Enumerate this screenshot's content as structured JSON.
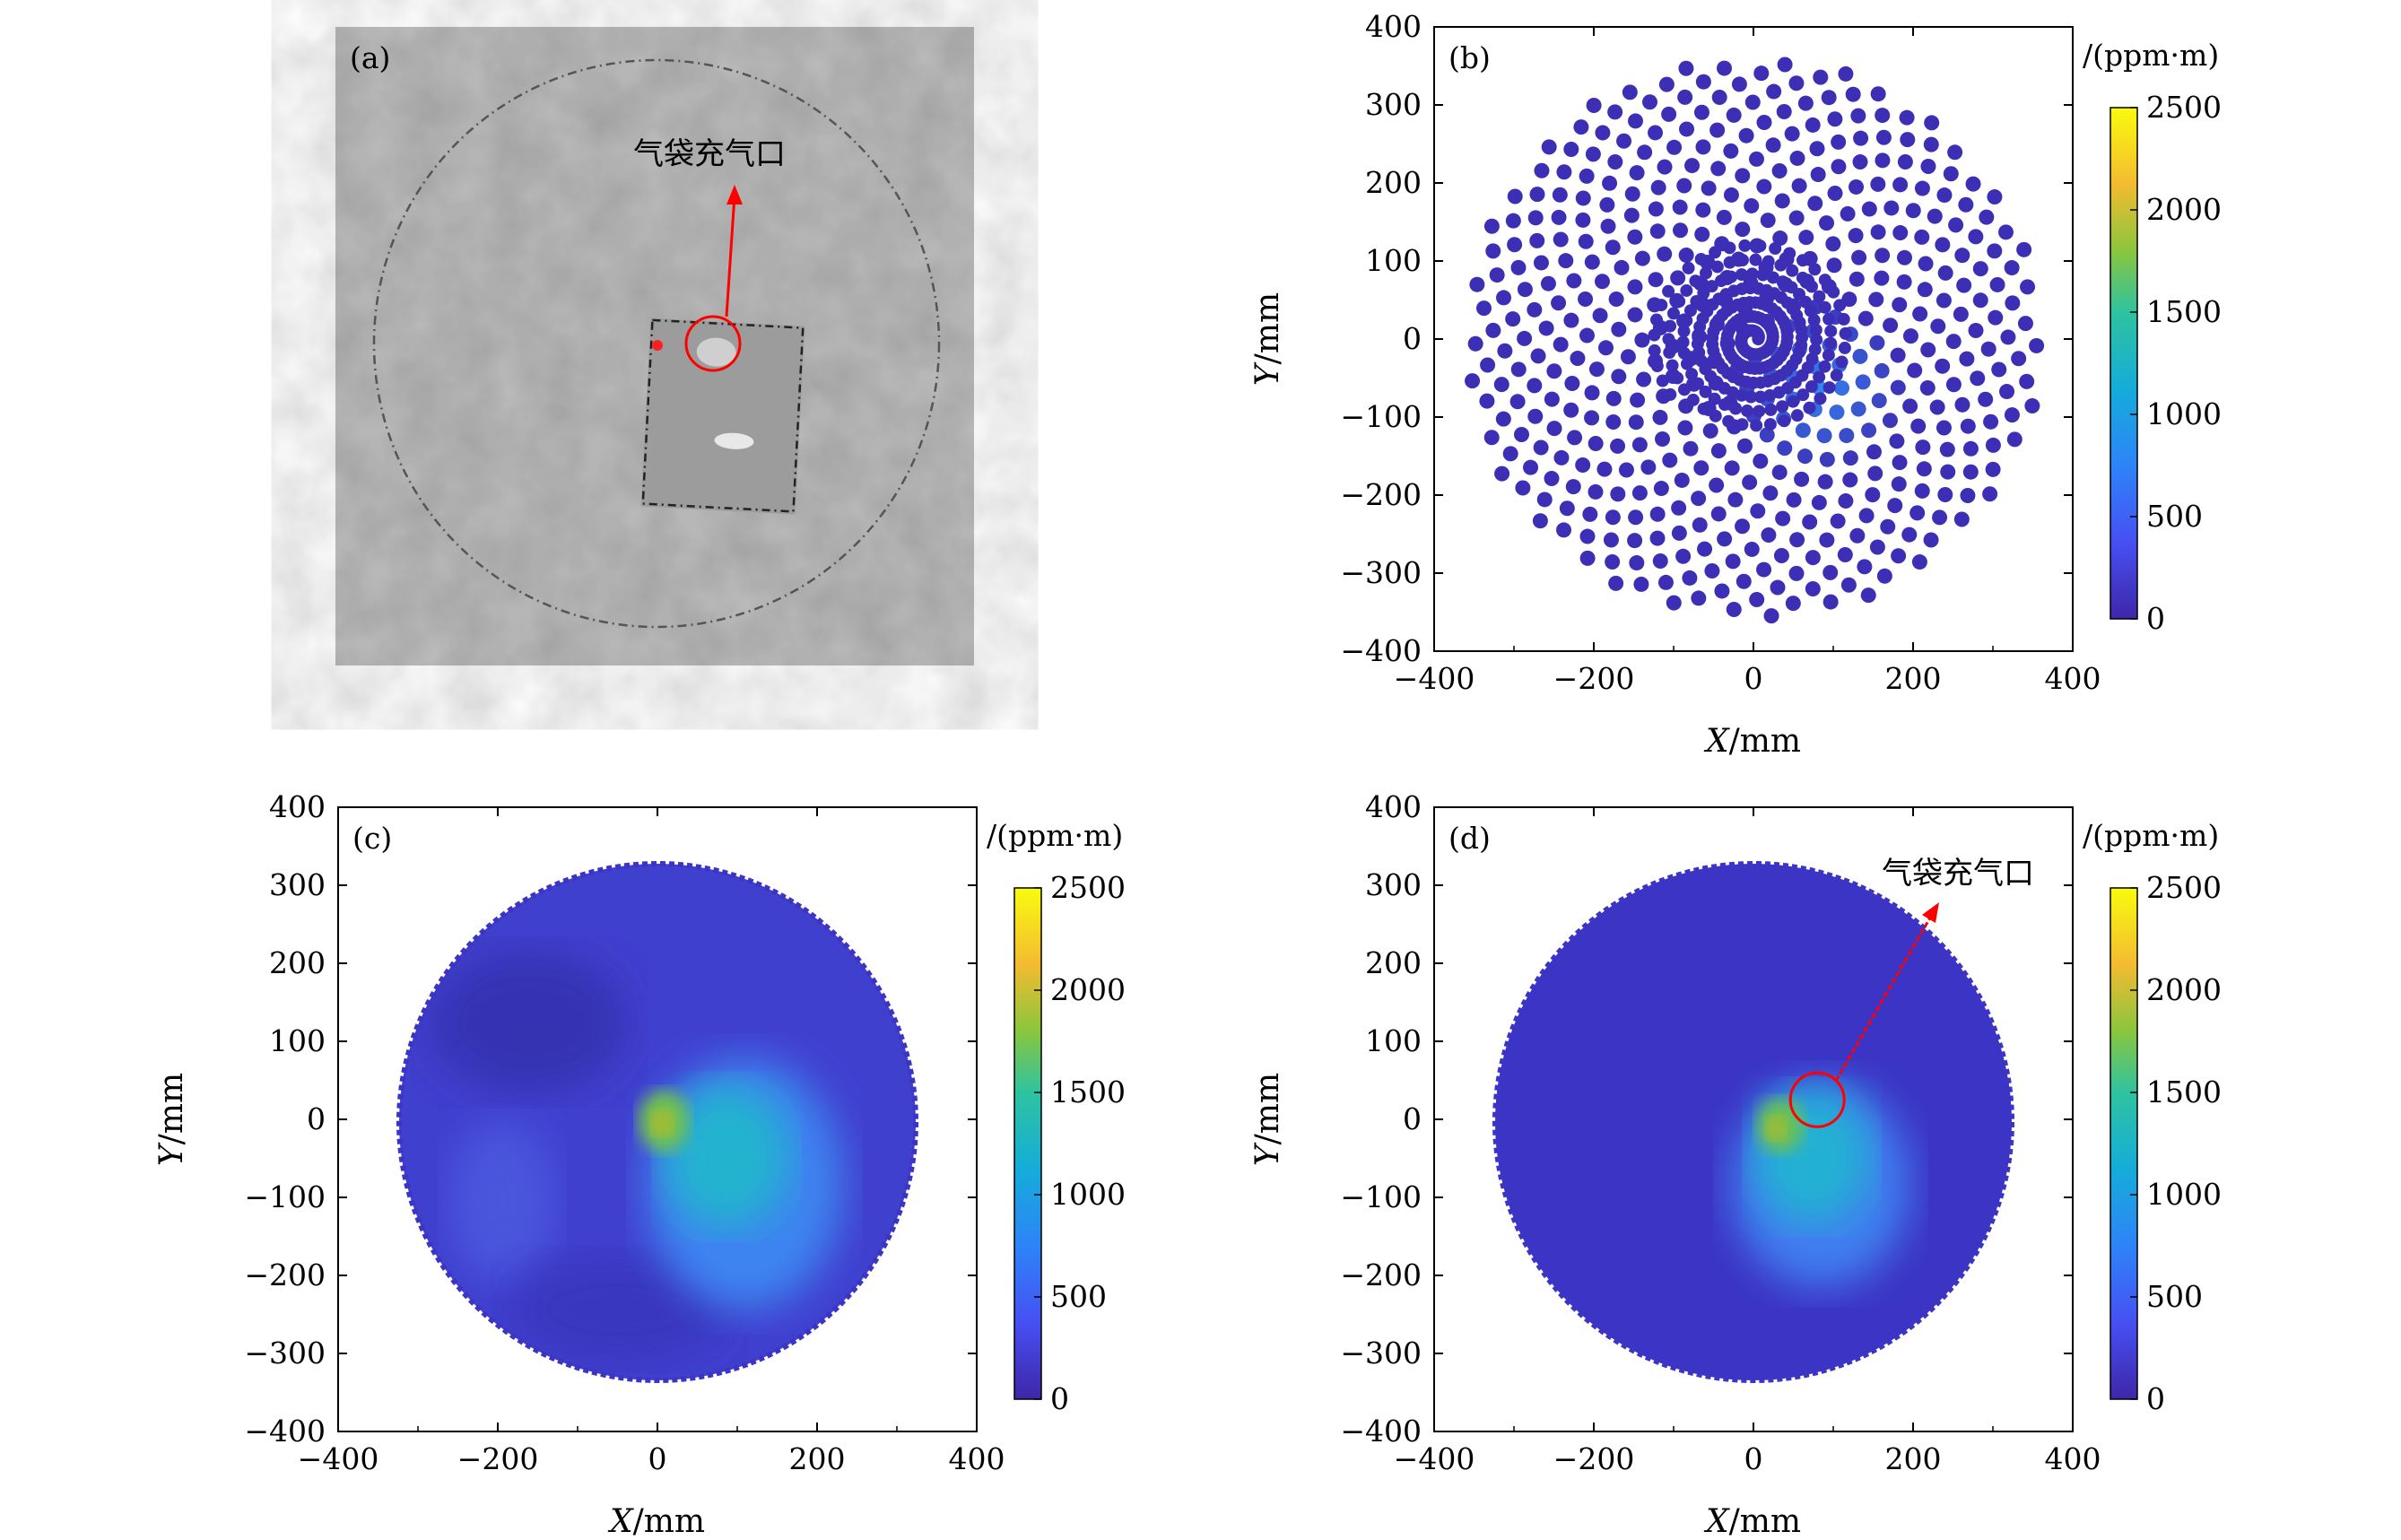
{
  "chart_data": [
    {
      "panel": "(a)",
      "type": "photo",
      "annotation": "气袋充气口"
    },
    {
      "panel": "(b)",
      "type": "scatter",
      "pattern": "spiral",
      "xlabel_var": "X",
      "xlabel_unit": "/mm",
      "ylabel_var": "Y",
      "ylabel_unit": "/mm",
      "xlim": [
        -400,
        400
      ],
      "ylim": [
        -400,
        400
      ],
      "xticks": [
        "−400",
        "−200",
        "0",
        "200",
        "400"
      ],
      "yticks": [
        "400",
        "300",
        "200",
        "100",
        "0",
        "−100",
        "−200",
        "−300",
        "−400"
      ],
      "colorbar_label": "/(ppm·m)",
      "colorbar_ticks": [
        "2500",
        "2000",
        "1500",
        "1000",
        "500",
        "0"
      ],
      "clim": [
        0,
        2500
      ],
      "point_count": 480,
      "max_radius": 360,
      "hotspot": {
        "x": 80,
        "y": -60,
        "value": 700
      }
    },
    {
      "panel": "(c)",
      "type": "heatmap",
      "xlabel_var": "X",
      "xlabel_unit": "/mm",
      "ylabel_var": "Y",
      "ylabel_unit": "/mm",
      "xlim": [
        -400,
        400
      ],
      "ylim": [
        -400,
        400
      ],
      "xticks": [
        "−400",
        "−200",
        "0",
        "200",
        "400"
      ],
      "yticks": [
        "400",
        "300",
        "200",
        "100",
        "0",
        "−100",
        "−200",
        "−300",
        "−400"
      ],
      "colorbar_label": "/(ppm·m)",
      "colorbar_ticks": [
        "2500",
        "2000",
        "1500",
        "1000",
        "500",
        "0"
      ],
      "clim": [
        0,
        2500
      ],
      "disk_radius": 330,
      "background_value": 200,
      "peak": {
        "x": 10,
        "y": -10,
        "value": 1700
      },
      "plume": {
        "x": 70,
        "y": -60,
        "value": 900
      }
    },
    {
      "panel": "(d)",
      "type": "heatmap",
      "xlabel_var": "X",
      "xlabel_unit": "/mm",
      "ylabel_var": "Y",
      "ylabel_unit": "/mm",
      "xlim": [
        -400,
        400
      ],
      "ylim": [
        -400,
        400
      ],
      "xticks": [
        "−400",
        "−200",
        "0",
        "200",
        "400"
      ],
      "yticks": [
        "400",
        "300",
        "200",
        "100",
        "0",
        "−100",
        "−200",
        "−300",
        "−400"
      ],
      "colorbar_label": "/(ppm·m)",
      "colorbar_ticks": [
        "2500",
        "2000",
        "1500",
        "1000",
        "500",
        "0"
      ],
      "clim": [
        0,
        2500
      ],
      "disk_radius": 330,
      "background_value": 80,
      "peak": {
        "x": 30,
        "y": -10,
        "value": 1600
      },
      "plume": {
        "x": 80,
        "y": -60,
        "value": 900
      },
      "annotation": "气袋充气口",
      "annotation_target": {
        "x": 80,
        "y": 25
      }
    }
  ],
  "colors": {
    "marker": "#3d2fb5",
    "disk_base": "#3b34c4",
    "annotation": "#ff0000"
  }
}
